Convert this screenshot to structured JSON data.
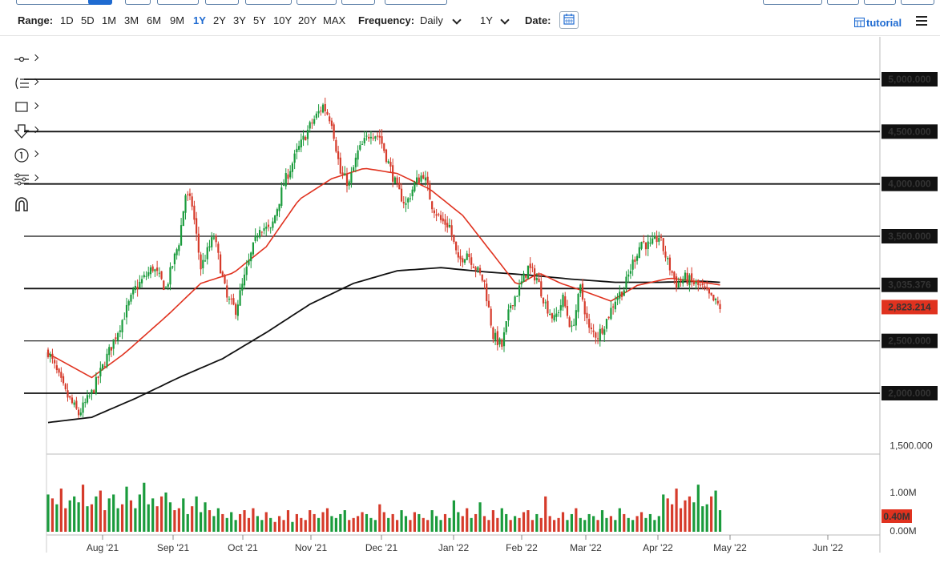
{
  "toolbar": {
    "range_label": "Range:",
    "ranges": [
      "1D",
      "5D",
      "1M",
      "3M",
      "6M",
      "9M",
      "1Y",
      "2Y",
      "3Y",
      "5Y",
      "10Y",
      "20Y",
      "MAX"
    ],
    "active_range": "1Y",
    "frequency_label": "Frequency:",
    "frequency_value": "Daily",
    "period_value": "1Y",
    "date_label": "Date:",
    "tutorial_label": "tutorial",
    "accent_color": "#1f6bd1"
  },
  "side_tools": [
    "crosshair-tool",
    "fibonacci-tool",
    "rectangle-tool",
    "arrow-down-tool",
    "annotation-number-tool",
    "settings-list-tool",
    "magnet-tool"
  ],
  "colors": {
    "up": "#1a9b3c",
    "down": "#d63b2b",
    "ma_short": "#e0321f",
    "ma_long": "#111111",
    "last_price_badge": "#e0321f"
  },
  "chart_data": {
    "type": "candlestick",
    "y_axis": {
      "ticks": [
        "5,000.000",
        "4,500.000",
        "4,000.000",
        "3,500.000",
        "3,035.376",
        "2,500.000",
        "2,000.000",
        "1,500.000"
      ],
      "range": [
        1500,
        5200
      ]
    },
    "price_labels": {
      "ma_value": "3,035.376",
      "last_price": "2,823.214"
    },
    "horizontal_lines": [
      5000,
      4500,
      4000,
      3500,
      3000,
      2500,
      2000
    ],
    "x_axis": {
      "labels": [
        "Aug '21",
        "Sep '21",
        "Oct '21",
        "Nov '21",
        "Dec '21",
        "Jan '22",
        "Feb '22",
        "Mar '22",
        "Apr '22",
        "May '22",
        "Jun '22"
      ]
    },
    "volume_axis": {
      "labels": [
        "1.00M",
        "0.40M",
        "0.00M"
      ],
      "last_volume_label": "0.40M",
      "range": [
        0,
        1.3
      ]
    },
    "close_path": [
      [
        0,
        2400
      ],
      [
        8,
        2000
      ],
      [
        14,
        1800
      ],
      [
        20,
        2000
      ],
      [
        25,
        2250
      ],
      [
        32,
        2600
      ],
      [
        40,
        3000
      ],
      [
        48,
        3200
      ],
      [
        54,
        3000
      ],
      [
        60,
        3450
      ],
      [
        63,
        3900
      ],
      [
        66,
        3800
      ],
      [
        70,
        3200
      ],
      [
        76,
        3500
      ],
      [
        82,
        2900
      ],
      [
        86,
        2800
      ],
      [
        92,
        3250
      ],
      [
        97,
        3600
      ],
      [
        102,
        3550
      ],
      [
        108,
        4000
      ],
      [
        114,
        4300
      ],
      [
        120,
        4550
      ],
      [
        126,
        4750
      ],
      [
        130,
        4600
      ],
      [
        134,
        4100
      ],
      [
        138,
        4000
      ],
      [
        142,
        4300
      ],
      [
        148,
        4500
      ],
      [
        152,
        4450
      ],
      [
        156,
        4200
      ],
      [
        160,
        3950
      ],
      [
        164,
        3800
      ],
      [
        168,
        4000
      ],
      [
        172,
        4100
      ],
      [
        176,
        3800
      ],
      [
        180,
        3650
      ],
      [
        184,
        3600
      ],
      [
        188,
        3250
      ],
      [
        192,
        3350
      ],
      [
        196,
        3200
      ],
      [
        200,
        3050
      ],
      [
        204,
        2550
      ],
      [
        208,
        2450
      ],
      [
        212,
        2850
      ],
      [
        216,
        3000
      ],
      [
        220,
        3200
      ],
      [
        224,
        3100
      ],
      [
        228,
        2850
      ],
      [
        232,
        2700
      ],
      [
        236,
        2900
      ],
      [
        240,
        2600
      ],
      [
        244,
        3000
      ],
      [
        248,
        2600
      ],
      [
        252,
        2550
      ],
      [
        256,
        2700
      ],
      [
        260,
        2900
      ],
      [
        264,
        3000
      ],
      [
        268,
        3250
      ],
      [
        272,
        3450
      ],
      [
        276,
        3400
      ],
      [
        280,
        3500
      ],
      [
        284,
        3250
      ],
      [
        288,
        3050
      ],
      [
        292,
        3100
      ],
      [
        296,
        3050
      ],
      [
        300,
        3000
      ],
      [
        304,
        2900
      ],
      [
        308,
        2823
      ]
    ],
    "ma_short": [
      [
        0,
        2380
      ],
      [
        20,
        2150
      ],
      [
        35,
        2380
      ],
      [
        55,
        2750
      ],
      [
        70,
        3050
      ],
      [
        85,
        3150
      ],
      [
        100,
        3400
      ],
      [
        115,
        3850
      ],
      [
        130,
        4050
      ],
      [
        145,
        4150
      ],
      [
        160,
        4100
      ],
      [
        175,
        3950
      ],
      [
        190,
        3700
      ],
      [
        205,
        3300
      ],
      [
        215,
        3030
      ],
      [
        225,
        3150
      ],
      [
        235,
        3050
      ],
      [
        245,
        2980
      ],
      [
        258,
        2880
      ],
      [
        270,
        3030
      ],
      [
        285,
        3100
      ],
      [
        300,
        3060
      ],
      [
        308,
        3035
      ]
    ],
    "ma_long": [
      [
        0,
        1720
      ],
      [
        20,
        1770
      ],
      [
        40,
        1950
      ],
      [
        60,
        2150
      ],
      [
        80,
        2330
      ],
      [
        100,
        2580
      ],
      [
        120,
        2850
      ],
      [
        140,
        3050
      ],
      [
        160,
        3170
      ],
      [
        180,
        3200
      ],
      [
        200,
        3160
      ],
      [
        220,
        3130
      ],
      [
        240,
        3090
      ],
      [
        260,
        3060
      ],
      [
        280,
        3060
      ],
      [
        300,
        3070
      ],
      [
        308,
        3060
      ]
    ],
    "bars_count": 309,
    "volume": [
      0.95,
      0.85,
      0.7,
      1.1,
      0.6,
      0.8,
      0.9,
      0.75,
      1.2,
      0.65,
      0.7,
      0.9,
      1.05,
      0.55,
      0.85,
      0.95,
      0.6,
      0.7,
      1.15,
      0.8,
      0.6,
      0.95,
      1.25,
      0.7,
      0.85,
      0.65,
      0.9,
      1.0,
      0.75,
      0.55,
      0.6,
      0.85,
      0.45,
      0.65,
      0.9,
      0.5,
      0.75,
      0.55,
      0.4,
      0.6,
      0.45,
      0.35,
      0.5,
      0.3,
      0.45,
      0.55,
      0.35,
      0.6,
      0.4,
      0.3,
      0.5,
      0.35,
      0.25,
      0.4,
      0.3,
      0.55,
      0.25,
      0.45,
      0.35,
      0.3,
      0.55,
      0.45,
      0.35,
      0.5,
      0.6,
      0.4,
      0.35,
      0.45,
      0.55,
      0.3,
      0.35,
      0.4,
      0.5,
      0.45,
      0.35,
      0.3,
      0.7,
      0.5,
      0.35,
      0.45,
      0.3,
      0.55,
      0.4,
      0.3,
      0.5,
      0.45,
      0.35,
      0.3,
      0.55,
      0.4,
      0.3,
      0.45,
      0.35,
      0.8,
      0.5,
      0.4,
      0.6,
      0.35,
      0.45,
      0.75,
      0.4,
      0.3,
      0.55,
      0.35,
      0.6,
      0.45,
      0.3,
      0.4,
      0.35,
      0.5,
      0.55,
      0.3,
      0.45,
      0.35,
      0.9,
      0.4,
      0.3,
      0.35,
      0.5,
      0.3,
      0.45,
      0.6,
      0.35,
      0.3,
      0.45,
      0.4,
      0.3,
      0.55,
      0.35,
      0.4,
      0.3,
      0.6,
      0.45,
      0.35,
      0.3,
      0.4,
      0.5,
      0.35,
      0.45,
      0.3,
      0.4
    ]
  }
}
